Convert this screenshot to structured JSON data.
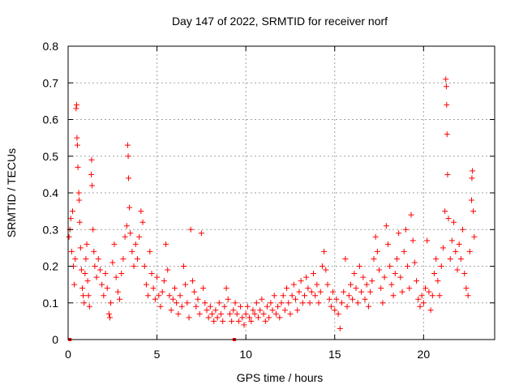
{
  "chart_data": {
    "type": "scatter",
    "title": "Day 147 of 2022, SRMTID for receiver norf",
    "xlabel": "GPS time / hours",
    "ylabel": "SRMTID / TECUs",
    "xlim": [
      0,
      24
    ],
    "ylim": [
      0,
      0.8
    ],
    "xticks": [
      0,
      5,
      10,
      15,
      20
    ],
    "yticks": [
      0,
      0.1,
      0.2,
      0.3,
      0.4,
      0.5,
      0.6,
      0.7,
      0.8
    ],
    "xtick_labels": [
      "0",
      "5",
      "10",
      "15",
      "20"
    ],
    "ytick_labels": [
      "0",
      "0.1",
      "0.2",
      "0.3",
      "0.4",
      "0.5",
      "0.6",
      "0.7",
      "0.8"
    ],
    "grid": true,
    "marker": "plus",
    "color": "#ff0000",
    "series": [
      {
        "name": "SRMTID",
        "points": [
          [
            0.05,
            0.28
          ],
          [
            0.1,
            0.3
          ],
          [
            0.15,
            0.33
          ],
          [
            0.2,
            0.24
          ],
          [
            0.25,
            0.35
          ],
          [
            0.3,
            0.2
          ],
          [
            0.35,
            0.15
          ],
          [
            0.4,
            0.22
          ],
          [
            0.45,
            0.63
          ],
          [
            0.48,
            0.64
          ],
          [
            0.5,
            0.55
          ],
          [
            0.52,
            0.53
          ],
          [
            0.55,
            0.47
          ],
          [
            0.6,
            0.4
          ],
          [
            0.62,
            0.38
          ],
          [
            0.65,
            0.32
          ],
          [
            0.7,
            0.25
          ],
          [
            0.75,
            0.19
          ],
          [
            0.8,
            0.14
          ],
          [
            0.85,
            0.12
          ],
          [
            0.9,
            0.1
          ],
          [
            0.95,
            0.18
          ],
          [
            1.0,
            0.22
          ],
          [
            1.05,
            0.26
          ],
          [
            1.1,
            0.16
          ],
          [
            1.15,
            0.12
          ],
          [
            1.2,
            0.09
          ],
          [
            1.3,
            0.45
          ],
          [
            1.32,
            0.49
          ],
          [
            1.35,
            0.42
          ],
          [
            1.4,
            0.3
          ],
          [
            1.45,
            0.24
          ],
          [
            1.5,
            0.2
          ],
          [
            1.6,
            0.17
          ],
          [
            1.7,
            0.22
          ],
          [
            1.8,
            0.19
          ],
          [
            1.9,
            0.15
          ],
          [
            2.0,
            0.12
          ],
          [
            2.1,
            0.18
          ],
          [
            2.2,
            0.14
          ],
          [
            2.3,
            0.07
          ],
          [
            2.35,
            0.06
          ],
          [
            2.4,
            0.1
          ],
          [
            2.5,
            0.21
          ],
          [
            2.6,
            0.26
          ],
          [
            2.7,
            0.17
          ],
          [
            2.8,
            0.13
          ],
          [
            2.9,
            0.11
          ],
          [
            3.0,
            0.18
          ],
          [
            3.1,
            0.22
          ],
          [
            3.2,
            0.28
          ],
          [
            3.3,
            0.31
          ],
          [
            3.35,
            0.53
          ],
          [
            3.38,
            0.5
          ],
          [
            3.4,
            0.44
          ],
          [
            3.45,
            0.36
          ],
          [
            3.5,
            0.29
          ],
          [
            3.6,
            0.24
          ],
          [
            3.7,
            0.2
          ],
          [
            3.8,
            0.26
          ],
          [
            3.9,
            0.22
          ],
          [
            4.0,
            0.28
          ],
          [
            4.1,
            0.35
          ],
          [
            4.2,
            0.32
          ],
          [
            4.3,
            0.2
          ],
          [
            4.4,
            0.15
          ],
          [
            4.5,
            0.12
          ],
          [
            4.6,
            0.24
          ],
          [
            4.7,
            0.18
          ],
          [
            4.8,
            0.14
          ],
          [
            4.9,
            0.11
          ],
          [
            5.0,
            0.17
          ],
          [
            5.1,
            0.12
          ],
          [
            5.2,
            0.09
          ],
          [
            5.3,
            0.13
          ],
          [
            5.4,
            0.16
          ],
          [
            5.5,
            0.26
          ],
          [
            5.6,
            0.19
          ],
          [
            5.7,
            0.12
          ],
          [
            5.8,
            0.08
          ],
          [
            5.9,
            0.11
          ],
          [
            6.0,
            0.14
          ],
          [
            6.1,
            0.1
          ],
          [
            6.2,
            0.07
          ],
          [
            6.3,
            0.12
          ],
          [
            6.4,
            0.09
          ],
          [
            6.5,
            0.2
          ],
          [
            6.6,
            0.15
          ],
          [
            6.7,
            0.1
          ],
          [
            6.8,
            0.06
          ],
          [
            6.9,
            0.3
          ],
          [
            7.0,
            0.16
          ],
          [
            7.1,
            0.13
          ],
          [
            7.2,
            0.09
          ],
          [
            7.3,
            0.11
          ],
          [
            7.4,
            0.07
          ],
          [
            7.5,
            0.29
          ],
          [
            7.6,
            0.14
          ],
          [
            7.7,
            0.1
          ],
          [
            7.8,
            0.08
          ],
          [
            7.9,
            0.06
          ],
          [
            8.0,
            0.09
          ],
          [
            8.1,
            0.07
          ],
          [
            8.2,
            0.05
          ],
          [
            8.3,
            0.08
          ],
          [
            8.4,
            0.06
          ],
          [
            8.5,
            0.1
          ],
          [
            8.6,
            0.07
          ],
          [
            8.7,
            0.05
          ],
          [
            8.8,
            0.09
          ],
          [
            8.9,
            0.14
          ],
          [
            9.0,
            0.11
          ],
          [
            9.1,
            0.07
          ],
          [
            9.2,
            0.05
          ],
          [
            9.3,
            0.08
          ],
          [
            9.4,
            0.1
          ],
          [
            9.5,
            0.07
          ],
          [
            9.6,
            0.05
          ],
          [
            9.7,
            0.09
          ],
          [
            9.8,
            0.06
          ],
          [
            9.9,
            0.04
          ],
          [
            10.0,
            0.07
          ],
          [
            10.1,
            0.09
          ],
          [
            10.2,
            0.06
          ],
          [
            10.3,
            0.05
          ],
          [
            10.4,
            0.08
          ],
          [
            10.5,
            0.07
          ],
          [
            10.6,
            0.1
          ],
          [
            10.7,
            0.06
          ],
          [
            10.8,
            0.08
          ],
          [
            10.9,
            0.11
          ],
          [
            11.0,
            0.07
          ],
          [
            11.1,
            0.05
          ],
          [
            11.2,
            0.09
          ],
          [
            11.3,
            0.06
          ],
          [
            11.4,
            0.1
          ],
          [
            11.5,
            0.08
          ],
          [
            11.6,
            0.12
          ],
          [
            11.7,
            0.07
          ],
          [
            11.8,
            0.09
          ],
          [
            11.9,
            0.06
          ],
          [
            12.0,
            0.1
          ],
          [
            12.1,
            0.12
          ],
          [
            12.2,
            0.08
          ],
          [
            12.3,
            0.14
          ],
          [
            12.4,
            0.1
          ],
          [
            12.5,
            0.07
          ],
          [
            12.6,
            0.12
          ],
          [
            12.7,
            0.15
          ],
          [
            12.8,
            0.11
          ],
          [
            12.9,
            0.08
          ],
          [
            13.0,
            0.13
          ],
          [
            13.1,
            0.16
          ],
          [
            13.2,
            0.1
          ],
          [
            13.3,
            0.12
          ],
          [
            13.4,
            0.17
          ],
          [
            13.5,
            0.14
          ],
          [
            13.6,
            0.1
          ],
          [
            13.7,
            0.13
          ],
          [
            13.8,
            0.18
          ],
          [
            13.9,
            0.12
          ],
          [
            14.0,
            0.15
          ],
          [
            14.1,
            0.1
          ],
          [
            14.2,
            0.13
          ],
          [
            14.3,
            0.2
          ],
          [
            14.4,
            0.24
          ],
          [
            14.5,
            0.19
          ],
          [
            14.6,
            0.15
          ],
          [
            14.7,
            0.11
          ],
          [
            14.8,
            0.09
          ],
          [
            14.9,
            0.13
          ],
          [
            15.0,
            0.08
          ],
          [
            15.1,
            0.11
          ],
          [
            15.2,
            0.07
          ],
          [
            15.3,
            0.03
          ],
          [
            15.4,
            0.1
          ],
          [
            15.5,
            0.13
          ],
          [
            15.6,
            0.22
          ],
          [
            15.7,
            0.09
          ],
          [
            15.8,
            0.12
          ],
          [
            15.9,
            0.15
          ],
          [
            16.0,
            0.11
          ],
          [
            16.1,
            0.18
          ],
          [
            16.2,
            0.14
          ],
          [
            16.3,
            0.1
          ],
          [
            16.4,
            0.2
          ],
          [
            16.5,
            0.13
          ],
          [
            16.6,
            0.17
          ],
          [
            16.7,
            0.11
          ],
          [
            16.8,
            0.15
          ],
          [
            16.9,
            0.09
          ],
          [
            17.0,
            0.13
          ],
          [
            17.1,
            0.16
          ],
          [
            17.2,
            0.22
          ],
          [
            17.3,
            0.28
          ],
          [
            17.4,
            0.24
          ],
          [
            17.5,
            0.19
          ],
          [
            17.6,
            0.14
          ],
          [
            17.7,
            0.1
          ],
          [
            17.8,
            0.17
          ],
          [
            17.9,
            0.31
          ],
          [
            18.0,
            0.26
          ],
          [
            18.1,
            0.2
          ],
          [
            18.2,
            0.15
          ],
          [
            18.3,
            0.12
          ],
          [
            18.4,
            0.18
          ],
          [
            18.5,
            0.22
          ],
          [
            18.6,
            0.29
          ],
          [
            18.7,
            0.17
          ],
          [
            18.8,
            0.13
          ],
          [
            18.9,
            0.24
          ],
          [
            19.0,
            0.3
          ],
          [
            19.1,
            0.2
          ],
          [
            19.2,
            0.14
          ],
          [
            19.3,
            0.34
          ],
          [
            19.4,
            0.27
          ],
          [
            19.5,
            0.21
          ],
          [
            19.6,
            0.16
          ],
          [
            19.7,
            0.11
          ],
          [
            19.8,
            0.09
          ],
          [
            19.9,
            0.12
          ],
          [
            20.0,
            0.1
          ],
          [
            20.1,
            0.14
          ],
          [
            20.2,
            0.27
          ],
          [
            20.3,
            0.13
          ],
          [
            20.4,
            0.08
          ],
          [
            20.5,
            0.12
          ],
          [
            20.6,
            0.18
          ],
          [
            20.7,
            0.22
          ],
          [
            20.8,
            0.16
          ],
          [
            20.9,
            0.12
          ],
          [
            21.0,
            0.2
          ],
          [
            21.1,
            0.25
          ],
          [
            21.2,
            0.35
          ],
          [
            21.25,
            0.71
          ],
          [
            21.28,
            0.69
          ],
          [
            21.3,
            0.64
          ],
          [
            21.32,
            0.56
          ],
          [
            21.35,
            0.45
          ],
          [
            21.4,
            0.33
          ],
          [
            21.5,
            0.22
          ],
          [
            21.6,
            0.27
          ],
          [
            21.7,
            0.32
          ],
          [
            21.8,
            0.24
          ],
          [
            21.9,
            0.19
          ],
          [
            22.0,
            0.26
          ],
          [
            22.1,
            0.22
          ],
          [
            22.2,
            0.3
          ],
          [
            22.3,
            0.18
          ],
          [
            22.4,
            0.14
          ],
          [
            22.5,
            0.12
          ],
          [
            22.6,
            0.24
          ],
          [
            22.7,
            0.38
          ],
          [
            22.72,
            0.44
          ],
          [
            22.75,
            0.46
          ],
          [
            22.8,
            0.35
          ],
          [
            22.85,
            0.28
          ]
        ]
      }
    ],
    "outliers": [
      [
        0.1,
        0.0
      ],
      [
        9.35,
        0.0
      ]
    ]
  }
}
